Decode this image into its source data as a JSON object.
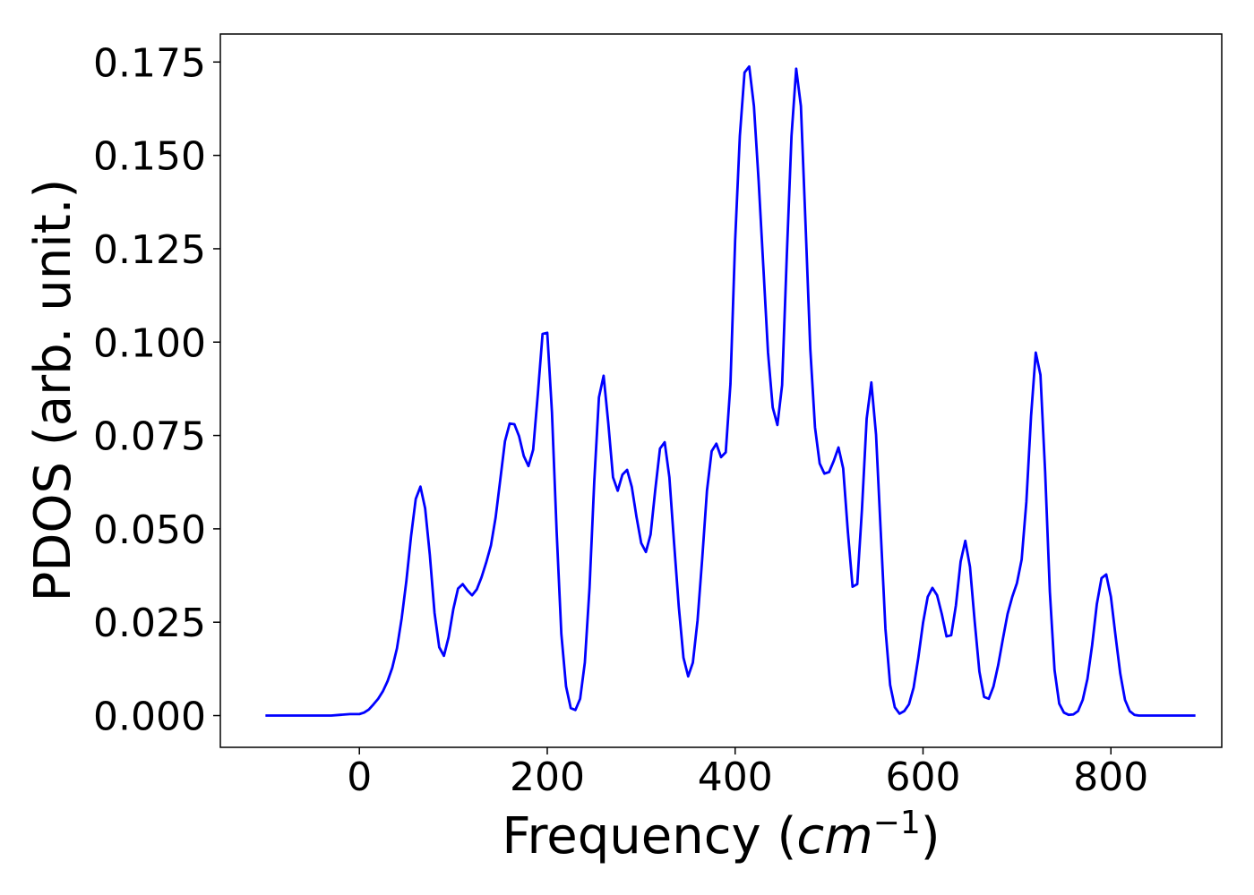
{
  "chart_data": {
    "type": "line",
    "title": "",
    "xlabel": "Frequency (",
    "xlabel_math": "cm",
    "xlabel_sup": "−1",
    "xlabel_close": ")",
    "ylabel": "PDOS (arb. unit.)",
    "xlim": [
      -148,
      918
    ],
    "ylim": [
      -0.0085,
      0.1825
    ],
    "grid": false,
    "legend": "none",
    "x_ticks": [
      0,
      200,
      400,
      600,
      800
    ],
    "x_tick_labels": [
      "0",
      "200",
      "400",
      "600",
      "800"
    ],
    "y_ticks": [
      0.0,
      0.025,
      0.05,
      0.075,
      0.1,
      0.125,
      0.15,
      0.175
    ],
    "y_tick_labels": [
      "0.000",
      "0.025",
      "0.050",
      "0.075",
      "0.100",
      "0.125",
      "0.150",
      "0.175"
    ],
    "series": [
      {
        "color": "#0000ff",
        "points": [
          [
            -100,
            0.0
          ],
          [
            -60,
            0.0
          ],
          [
            -30,
            0.0
          ],
          [
            -20,
            0.0002
          ],
          [
            -10,
            0.0004
          ],
          [
            0,
            0.0004
          ],
          [
            5,
            0.0008
          ],
          [
            10,
            0.0016
          ],
          [
            15,
            0.003
          ],
          [
            20,
            0.0045
          ],
          [
            25,
            0.0065
          ],
          [
            30,
            0.0092
          ],
          [
            35,
            0.0128
          ],
          [
            40,
            0.018
          ],
          [
            45,
            0.026
          ],
          [
            50,
            0.036
          ],
          [
            55,
            0.048
          ],
          [
            60,
            0.058
          ],
          [
            65,
            0.0613
          ],
          [
            70,
            0.0555
          ],
          [
            75,
            0.043
          ],
          [
            80,
            0.0275
          ],
          [
            85,
            0.0183
          ],
          [
            90,
            0.016
          ],
          [
            95,
            0.021
          ],
          [
            100,
            0.0285
          ],
          [
            105,
            0.034
          ],
          [
            110,
            0.0352
          ],
          [
            115,
            0.0335
          ],
          [
            120,
            0.0322
          ],
          [
            125,
            0.0338
          ],
          [
            130,
            0.037
          ],
          [
            135,
            0.041
          ],
          [
            140,
            0.0455
          ],
          [
            145,
            0.053
          ],
          [
            150,
            0.0632
          ],
          [
            155,
            0.0735
          ],
          [
            160,
            0.0782
          ],
          [
            165,
            0.078
          ],
          [
            170,
            0.0748
          ],
          [
            175,
            0.0695
          ],
          [
            180,
            0.0668
          ],
          [
            185,
            0.0712
          ],
          [
            190,
            0.0862
          ],
          [
            195,
            0.1022
          ],
          [
            200,
            0.1025
          ],
          [
            205,
            0.0812
          ],
          [
            210,
            0.0492
          ],
          [
            215,
            0.0218
          ],
          [
            220,
            0.0078
          ],
          [
            225,
            0.002
          ],
          [
            230,
            0.0015
          ],
          [
            235,
            0.0045
          ],
          [
            240,
            0.0142
          ],
          [
            245,
            0.0342
          ],
          [
            250,
            0.0625
          ],
          [
            255,
            0.0852
          ],
          [
            260,
            0.091
          ],
          [
            265,
            0.0782
          ],
          [
            270,
            0.0638
          ],
          [
            275,
            0.0602
          ],
          [
            280,
            0.0645
          ],
          [
            285,
            0.0658
          ],
          [
            290,
            0.0612
          ],
          [
            295,
            0.0532
          ],
          [
            300,
            0.0462
          ],
          [
            305,
            0.0438
          ],
          [
            310,
            0.0485
          ],
          [
            315,
            0.0605
          ],
          [
            320,
            0.0715
          ],
          [
            325,
            0.0732
          ],
          [
            330,
            0.0638
          ],
          [
            335,
            0.0462
          ],
          [
            340,
            0.0292
          ],
          [
            345,
            0.0155
          ],
          [
            350,
            0.0105
          ],
          [
            355,
            0.0142
          ],
          [
            360,
            0.0255
          ],
          [
            365,
            0.0422
          ],
          [
            370,
            0.0602
          ],
          [
            375,
            0.0708
          ],
          [
            380,
            0.0728
          ],
          [
            385,
            0.0692
          ],
          [
            390,
            0.0705
          ],
          [
            395,
            0.0888
          ],
          [
            400,
            0.1272
          ],
          [
            405,
            0.1552
          ],
          [
            410,
            0.1722
          ],
          [
            415,
            0.1738
          ],
          [
            420,
            0.1632
          ],
          [
            425,
            0.1432
          ],
          [
            430,
            0.1202
          ],
          [
            435,
            0.0972
          ],
          [
            440,
            0.0825
          ],
          [
            445,
            0.0778
          ],
          [
            450,
            0.0885
          ],
          [
            455,
            0.1232
          ],
          [
            460,
            0.1552
          ],
          [
            465,
            0.1732
          ],
          [
            470,
            0.1632
          ],
          [
            475,
            0.1312
          ],
          [
            480,
            0.0982
          ],
          [
            485,
            0.0772
          ],
          [
            490,
            0.0675
          ],
          [
            495,
            0.0648
          ],
          [
            500,
            0.0652
          ],
          [
            505,
            0.0682
          ],
          [
            510,
            0.0718
          ],
          [
            515,
            0.0662
          ],
          [
            520,
            0.0492
          ],
          [
            525,
            0.0345
          ],
          [
            530,
            0.0352
          ],
          [
            535,
            0.0552
          ],
          [
            540,
            0.0795
          ],
          [
            545,
            0.0892
          ],
          [
            550,
            0.0752
          ],
          [
            555,
            0.0492
          ],
          [
            560,
            0.0232
          ],
          [
            565,
            0.0082
          ],
          [
            570,
            0.0022
          ],
          [
            575,
            0.0005
          ],
          [
            580,
            0.0012
          ],
          [
            585,
            0.003
          ],
          [
            590,
            0.0075
          ],
          [
            595,
            0.0155
          ],
          [
            600,
            0.0248
          ],
          [
            605,
            0.0318
          ],
          [
            610,
            0.0342
          ],
          [
            615,
            0.0322
          ],
          [
            620,
            0.0272
          ],
          [
            625,
            0.0212
          ],
          [
            630,
            0.0215
          ],
          [
            635,
            0.0295
          ],
          [
            640,
            0.0412
          ],
          [
            645,
            0.0468
          ],
          [
            650,
            0.0398
          ],
          [
            655,
            0.0252
          ],
          [
            660,
            0.0118
          ],
          [
            665,
            0.005
          ],
          [
            670,
            0.0045
          ],
          [
            675,
            0.0078
          ],
          [
            680,
            0.0135
          ],
          [
            685,
            0.0205
          ],
          [
            690,
            0.0272
          ],
          [
            695,
            0.0318
          ],
          [
            700,
            0.0355
          ],
          [
            705,
            0.0418
          ],
          [
            710,
            0.0572
          ],
          [
            715,
            0.0802
          ],
          [
            720,
            0.0972
          ],
          [
            725,
            0.0912
          ],
          [
            730,
            0.0652
          ],
          [
            735,
            0.0332
          ],
          [
            740,
            0.0122
          ],
          [
            745,
            0.0032
          ],
          [
            750,
            0.0008
          ],
          [
            755,
            0.0002
          ],
          [
            760,
            0.0003
          ],
          [
            765,
            0.0012
          ],
          [
            770,
            0.0042
          ],
          [
            775,
            0.0098
          ],
          [
            780,
            0.0188
          ],
          [
            785,
            0.0298
          ],
          [
            790,
            0.0368
          ],
          [
            795,
            0.0378
          ],
          [
            800,
            0.0318
          ],
          [
            805,
            0.0212
          ],
          [
            810,
            0.0112
          ],
          [
            815,
            0.0042
          ],
          [
            820,
            0.0012
          ],
          [
            825,
            0.0002
          ],
          [
            830,
            0.0
          ],
          [
            850,
            0.0
          ],
          [
            870,
            0.0
          ],
          [
            890,
            0.0
          ]
        ]
      }
    ]
  }
}
